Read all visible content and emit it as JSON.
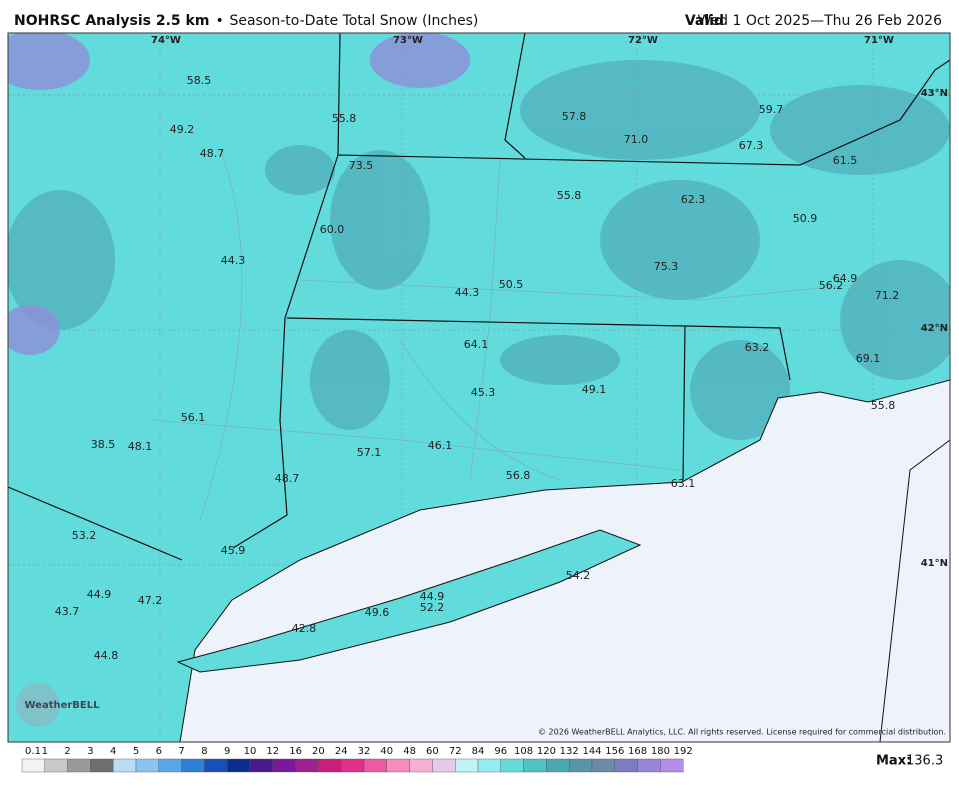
{
  "header": {
    "title": "NOHRSC Analysis 2.5 km",
    "separator": "•",
    "subtitle": "Season-to-Date Total Snow (Inches)",
    "valid_label": "Valid",
    "valid_range": "Wed 1 Oct 2025—Thu 26 Feb 2026"
  },
  "longitudes": [
    "74°W",
    "73°W",
    "72°W",
    "71°W"
  ],
  "latitudes": [
    "43°N",
    "42°N",
    "41°N"
  ],
  "map_labels": [
    "58.5",
    "49.2",
    "48.7",
    "55.8",
    "73.5",
    "57.8",
    "71.0",
    "59.7",
    "67.3",
    "61.5",
    "55.8",
    "62.3",
    "50.9",
    "60.0",
    "44.3",
    "75.3",
    "64.9",
    "56.2",
    "71.2",
    "44.3",
    "50.5",
    "64.1",
    "63.2",
    "69.1",
    "45.3",
    "49.1",
    "55.8",
    "56.1",
    "38.5",
    "48.1",
    "57.1",
    "46.1",
    "48.7",
    "56.8",
    "63.1",
    "53.2",
    "45.9",
    "54.2",
    "44.9",
    "47.2",
    "43.7",
    "44.9",
    "52.2",
    "49.6",
    "42.8",
    "44.8"
  ],
  "logo": "WeatherBELL",
  "copyright": "© 2026 WeatherBELL Analytics, LLC. All rights reserved. License required for commercial distribution.",
  "legend": {
    "labels": [
      "0.1",
      "1",
      "2",
      "3",
      "4",
      "5",
      "6",
      "7",
      "8",
      "9",
      "10",
      "12",
      "16",
      "20",
      "24",
      "32",
      "40",
      "48",
      "60",
      "72",
      "84",
      "96",
      "108",
      "120",
      "132",
      "144",
      "156",
      "168",
      "180",
      "192"
    ]
  },
  "max": {
    "label": "Max:",
    "value": "136.3"
  }
}
